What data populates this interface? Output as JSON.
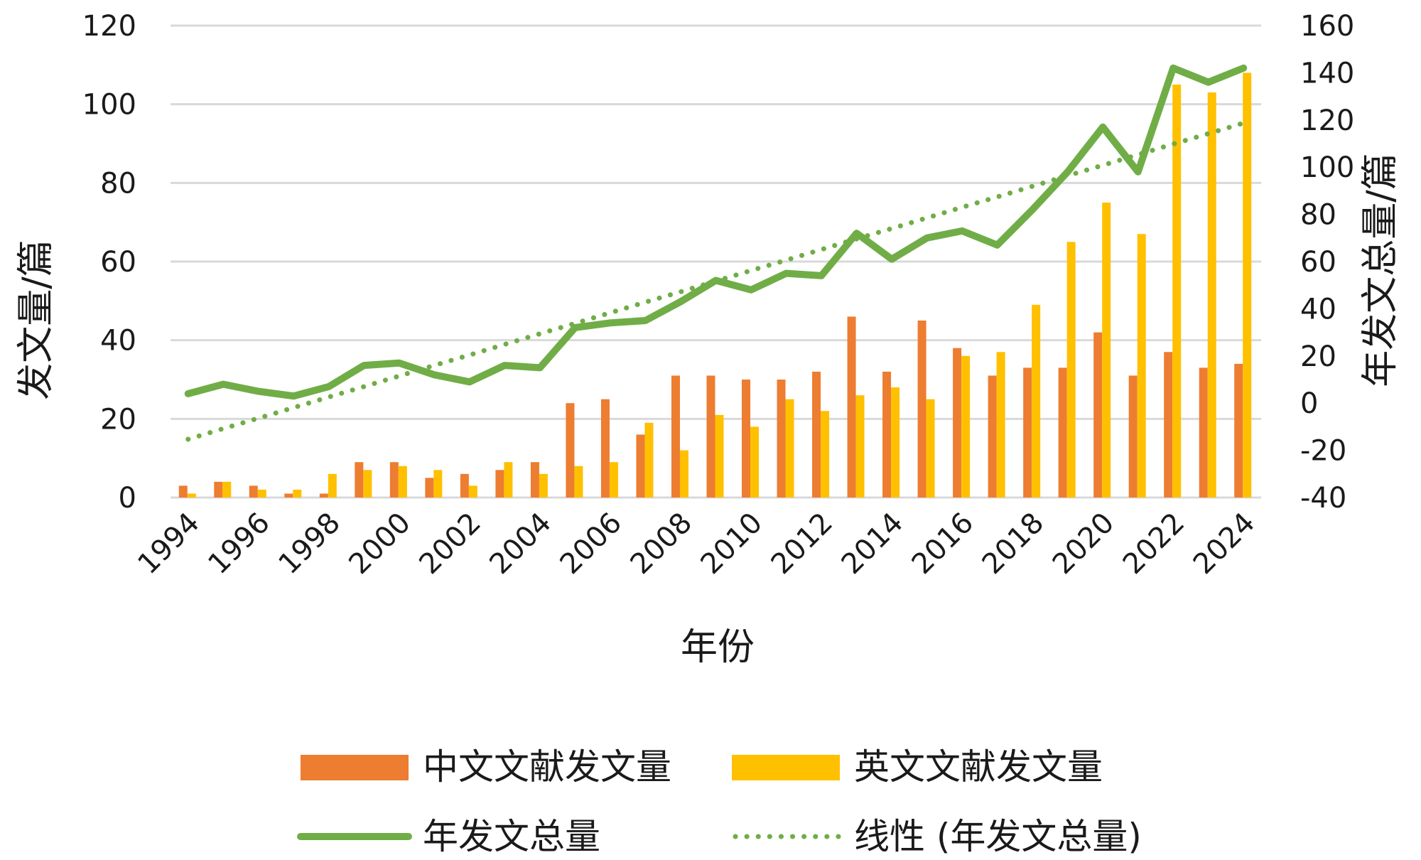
{
  "chart_data": {
    "type": "bar",
    "x": [
      1994,
      1995,
      1996,
      1997,
      1998,
      1999,
      2000,
      2001,
      2002,
      2003,
      2004,
      2005,
      2006,
      2007,
      2008,
      2009,
      2010,
      2011,
      2012,
      2013,
      2014,
      2015,
      2016,
      2017,
      2018,
      2019,
      2020,
      2021,
      2022,
      2023,
      2024
    ],
    "x_tick_labels": [
      "1994",
      "1996",
      "1998",
      "2000",
      "2002",
      "2004",
      "2006",
      "2008",
      "2010",
      "2012",
      "2014",
      "2016",
      "2018",
      "2020",
      "2022",
      "2024"
    ],
    "xlabel": "年份",
    "ylabel_left": "发文量/篇",
    "ylabel_right": "年发文总量/篇",
    "ylim_left": [
      0,
      120
    ],
    "ylim_right": [
      -40,
      160
    ],
    "yticks_left": [
      "0",
      "20",
      "40",
      "60",
      "80",
      "100",
      "120"
    ],
    "yticks_right": [
      "-40",
      "-20",
      "0",
      "20",
      "40",
      "60",
      "80",
      "100",
      "120",
      "140",
      "160"
    ],
    "grid": true,
    "legend_position": "bottom",
    "series": [
      {
        "name": "中文文献发文量",
        "type": "bar",
        "axis": "left",
        "color": "#ED7D31",
        "values": [
          3,
          4,
          3,
          1,
          1,
          9,
          9,
          5,
          6,
          7,
          9,
          24,
          25,
          16,
          31,
          31,
          30,
          30,
          32,
          46,
          32,
          45,
          38,
          31,
          33,
          33,
          42,
          31,
          37,
          33,
          34
        ]
      },
      {
        "name": "英文文献发文量",
        "type": "bar",
        "axis": "left",
        "color": "#FFC000",
        "values": [
          1,
          4,
          2,
          2,
          6,
          7,
          8,
          7,
          3,
          9,
          6,
          8,
          9,
          19,
          12,
          21,
          18,
          25,
          22,
          26,
          28,
          25,
          36,
          37,
          49,
          65,
          75,
          67,
          105,
          103,
          108
        ]
      },
      {
        "name": "年发文总量",
        "type": "line",
        "axis": "right",
        "color": "#70AD47",
        "values": [
          4,
          8,
          5,
          3,
          7,
          16,
          17,
          12,
          9,
          16,
          15,
          32,
          34,
          35,
          43,
          52,
          48,
          55,
          54,
          72,
          61,
          70,
          73,
          67,
          82,
          98,
          117,
          98,
          142,
          136,
          142
        ]
      },
      {
        "name": "线性 (年发文总量)",
        "type": "trendline",
        "axis": "right",
        "color": "#70AD47",
        "values": [
          -15.3,
          -10.8,
          -6.4,
          -1.9,
          2.6,
          7.0,
          11.5,
          16.0,
          20.4,
          24.9,
          29.4,
          33.8,
          38.3,
          42.8,
          47.2,
          51.7,
          56.2,
          60.6,
          65.1,
          69.6,
          74.0,
          78.5,
          83.0,
          87.4,
          91.9,
          96.4,
          100.8,
          105.3,
          109.8,
          114.2,
          118.7
        ]
      }
    ]
  }
}
